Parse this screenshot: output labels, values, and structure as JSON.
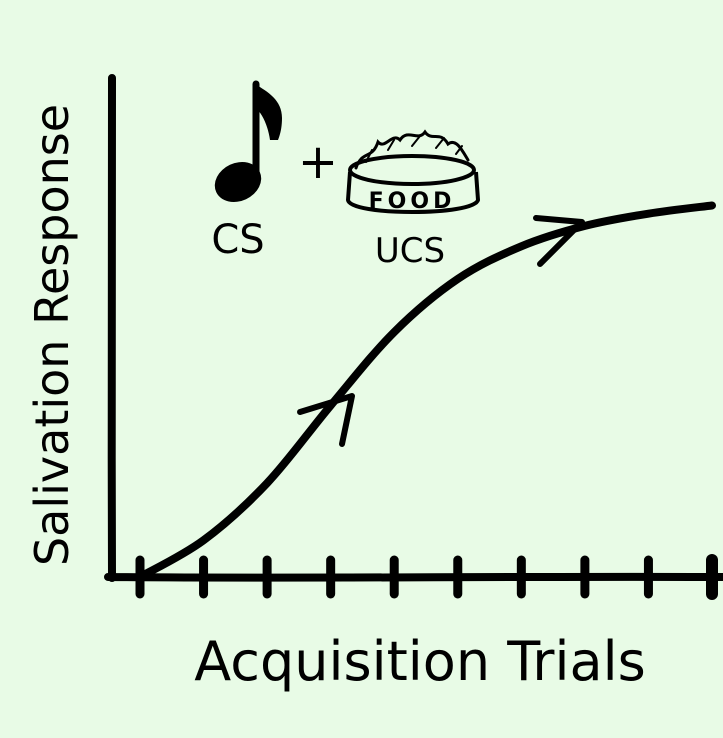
{
  "chart_data": {
    "type": "line",
    "title": "",
    "xlabel": "Acquisition Trials",
    "ylabel": "Salivation Response",
    "tick_count": 10,
    "xlim": [
      0,
      10
    ],
    "ylim": [
      0,
      10
    ],
    "grid": false,
    "series": [
      {
        "x": [
          0,
          1,
          2,
          3,
          4,
          5,
          6,
          7,
          8,
          9
        ],
        "values": [
          0,
          0.9,
          2.3,
          4.2,
          6.0,
          7.3,
          8.1,
          8.6,
          8.9,
          9.1
        ]
      }
    ],
    "arrows_on_curve": 2
  },
  "annotation": {
    "cs_label": "CS",
    "plus_sign": "+",
    "ucs_label": "UCS",
    "bowl_text": "FOOD",
    "cs_icon": "music-note-icon",
    "ucs_icon": "food-bowl-icon"
  },
  "colors": {
    "background": "#e8fbe6",
    "ink": "#000000"
  }
}
